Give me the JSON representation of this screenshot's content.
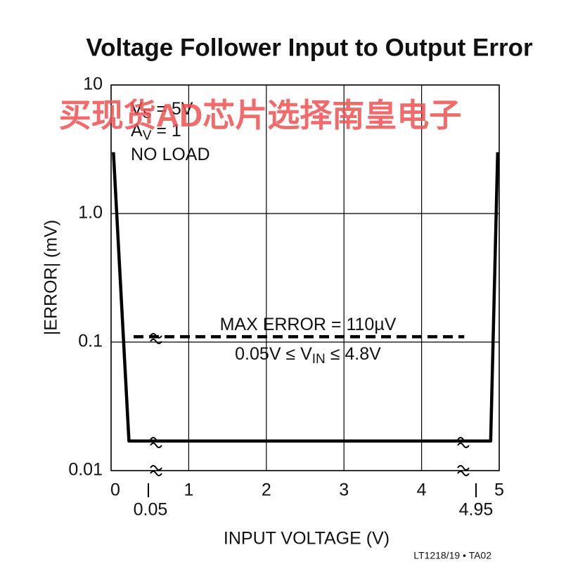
{
  "chart_data": {
    "type": "line",
    "title": "Voltage Follower Input to Output Error",
    "x_label": "INPUT VOLTAGE (V)",
    "y_label": "|ERROR| (mV)",
    "y_log": true,
    "grid": true,
    "xlim": [
      0,
      5
    ],
    "xticks": [
      0,
      1,
      2,
      3,
      4,
      5
    ],
    "ylim": [
      0.01,
      10
    ],
    "yticks": [
      0.01,
      0.1,
      {
        "value": 1,
        "label": "1.0"
      },
      10
    ],
    "break_labels": [
      "0.05",
      "4.95"
    ],
    "series": [
      {
        "color": "#000000",
        "dashed": false,
        "x": [
          0.03,
          0.23,
          4.89,
          4.98
        ],
        "values": [
          3,
          0.017,
          0.017,
          3
        ]
      },
      {
        "color": "#000000",
        "dashed": true,
        "x": [
          0.29,
          4.55
        ],
        "values": [
          0.11,
          0.11
        ]
      }
    ],
    "annotations": [
      {
        "parts": [
          "V",
          "S",
          " = 5V"
        ]
      },
      {
        "parts": [
          "A",
          "V",
          " = 1"
        ]
      },
      {
        "parts": [
          "NO LOAD"
        ]
      },
      {
        "parts": [
          "MAX ERROR = 110µV"
        ]
      },
      {
        "parts": [
          "0.05V ≤ V",
          "IN",
          " ≤ 4.8V"
        ]
      }
    ],
    "footnote": "LT1218/19 • TA02",
    "watermark": "买现货AD芯片选择南皇电子"
  }
}
